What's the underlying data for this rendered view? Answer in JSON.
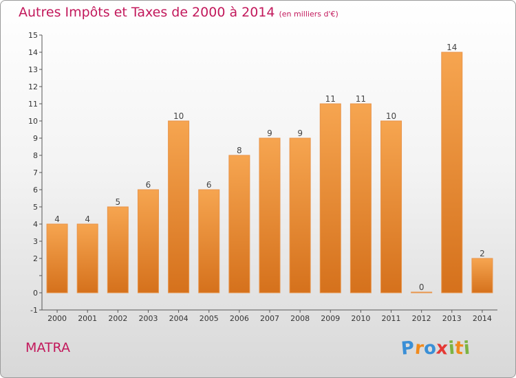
{
  "title": "Autres Impôts et Taxes de 2000 à 2014",
  "title_unit": "(en milliers d'€)",
  "commune": "MATRA",
  "logo": {
    "letters": [
      "P",
      "r",
      "o",
      "x",
      "i",
      "t",
      "i"
    ],
    "colors": [
      "#3a8fd6",
      "#f08a1c",
      "#3a8fd6",
      "#e53935",
      "#7cb342",
      "#f08a1c",
      "#7cb342"
    ]
  },
  "colors": {
    "bar": "#f08a2a",
    "accent": "#c2185b"
  },
  "chart_data": {
    "type": "bar",
    "title": "Autres Impôts et Taxes de 2000 à 2014",
    "subtitle": "(en milliers d'€)",
    "categories": [
      "2000",
      "2001",
      "2002",
      "2003",
      "2004",
      "2005",
      "2006",
      "2007",
      "2008",
      "2009",
      "2010",
      "2011",
      "2012",
      "2013",
      "2014"
    ],
    "values": [
      4,
      4,
      5,
      6,
      10,
      6,
      8,
      9,
      9,
      11,
      11,
      10,
      0,
      14,
      2
    ],
    "ylim": [
      -1,
      15
    ],
    "yticks": [
      -1,
      0,
      1,
      2,
      3,
      4,
      5,
      6,
      7,
      8,
      9,
      10,
      11,
      12,
      13,
      14,
      15
    ],
    "ytick_labels": [
      "-1",
      "0",
      "",
      "2",
      "3",
      "4",
      "5",
      "6",
      "7",
      "8",
      "9",
      "10",
      "11",
      "12",
      "13",
      "14",
      "15"
    ],
    "grid": false,
    "data_labels": true
  }
}
